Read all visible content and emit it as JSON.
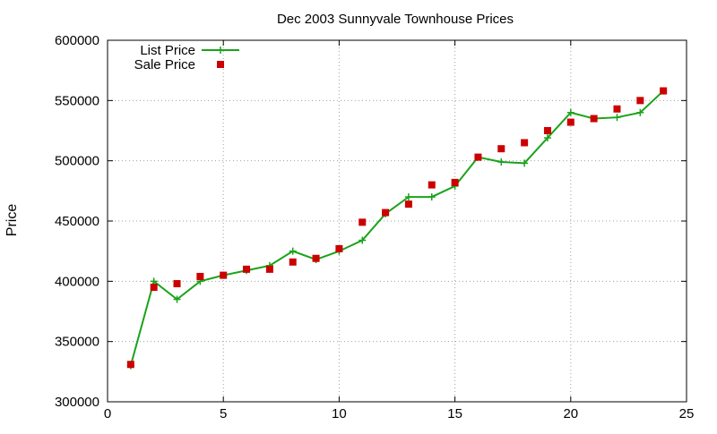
{
  "chart_data": {
    "type": "line",
    "title": "Dec 2003 Sunnyvale Townhouse Prices",
    "xlabel": "",
    "ylabel": "Price",
    "xlim": [
      0,
      25
    ],
    "ylim": [
      300000,
      600000
    ],
    "x_ticks": [
      0,
      5,
      10,
      15,
      20,
      25
    ],
    "y_ticks": [
      300000,
      350000,
      400000,
      450000,
      500000,
      550000,
      600000
    ],
    "grid": true,
    "legend_position": "top-left",
    "series": [
      {
        "name": "List Price",
        "style": "lines+points",
        "color": "#1aa31a",
        "marker": "plus",
        "x": [
          1,
          2,
          3,
          4,
          5,
          6,
          7,
          8,
          9,
          10,
          11,
          12,
          13,
          14,
          15,
          16,
          17,
          18,
          19,
          20,
          21,
          22,
          23,
          24
        ],
        "y": [
          330000,
          400000,
          385000,
          400000,
          405000,
          409000,
          413000,
          425000,
          418000,
          425000,
          434000,
          456000,
          470000,
          470000,
          479000,
          503000,
          499000,
          498000,
          519000,
          540000,
          535000,
          536000,
          540000,
          558000
        ]
      },
      {
        "name": "Sale Price",
        "style": "points",
        "color": "#cc0000",
        "marker": "square",
        "x": [
          1,
          2,
          3,
          4,
          5,
          6,
          7,
          8,
          9,
          10,
          11,
          12,
          13,
          14,
          15,
          16,
          17,
          18,
          19,
          20,
          21,
          22,
          23,
          24
        ],
        "y": [
          331000,
          395000,
          398000,
          404000,
          405000,
          410000,
          410000,
          416000,
          419000,
          427000,
          449000,
          457000,
          464000,
          480000,
          482000,
          503000,
          510000,
          515000,
          525000,
          532000,
          535000,
          543000,
          550000,
          558000
        ]
      }
    ]
  }
}
